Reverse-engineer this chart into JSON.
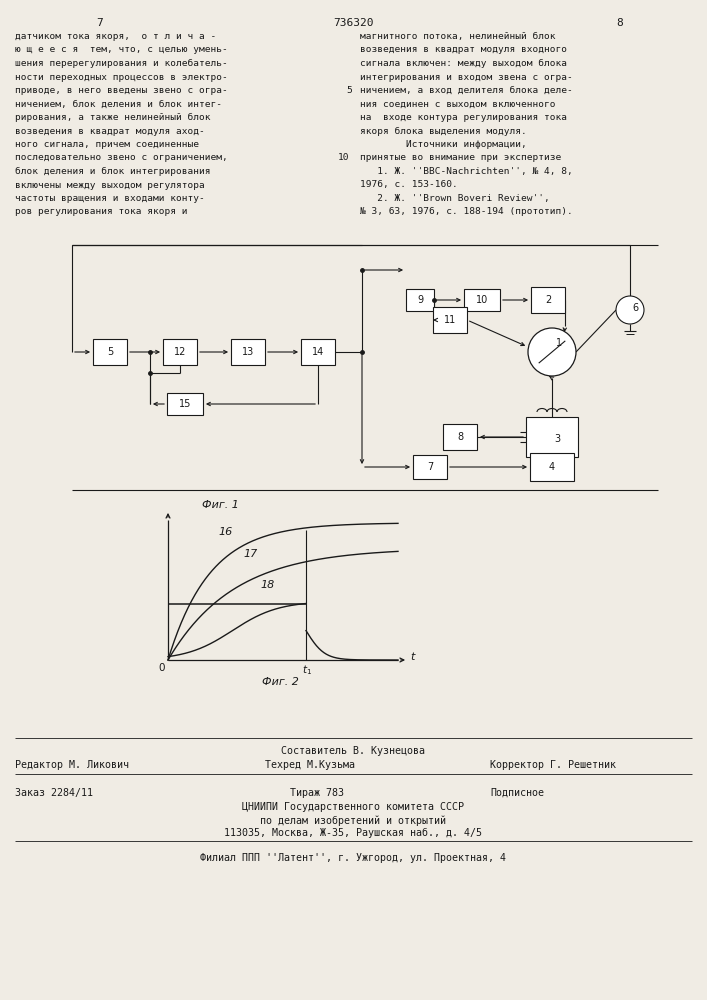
{
  "page_width": 7.07,
  "page_height": 10.0,
  "bg_color": "#f0ece4",
  "text_color": "#1a1a1a",
  "page_num_left": "7",
  "page_num_center": "736320",
  "page_num_right": "8",
  "left_text": [
    "датчиком тока якоря,  о т л и ч а -",
    "ю щ е е с я  тем, что, с целью умень-",
    "шения перерегулирования и колебатель-",
    "ности переходных процессов в электро-",
    "приводе, в него введены звено с огра-",
    "ничением, блок деления и блок интег-",
    "рирования, а также нелинейный блок",
    "возведения в квадрат модуля аход-",
    "ного сигнала, причем соединенные",
    "последовательно звено с ограничением,",
    "блок деления и блок интегрирования",
    "включены между выходом регулятора",
    "частоты вращения и входами конту-",
    "ров регулирования тока якоря и"
  ],
  "right_text": [
    "магнитного потока, нелинейный блок",
    "возведения в квадрат модуля входного",
    "сигнала включен: между выходом блока",
    "интегрирования и входом звена с огра-",
    "ничением, а вход делителя блока деле-",
    "ния соединен с выходом включенного",
    "на  входе контура регулирования тока",
    "якоря блока выделения модуля.",
    "        Источники информации,",
    "принятые во внимание при экспертизе",
    "   1. Ж. ''BBC-Nachrichten'', № 4, 8,",
    "1976, с. 153-160.",
    "   2. Ж. ''Brown Boveri Review'',",
    "№ 3, 63, 1976, с. 188-194 (прототип)."
  ],
  "line_num_5": "5",
  "line_num_10": "10",
  "fig1_caption": "Фиг. 1",
  "fig2_caption": "Фиг. 2",
  "footer_comp": "Составитель В. Кузнецова",
  "footer_editor": "Редактор М. Ликович",
  "footer_tech": "Техред М.Кузьма",
  "footer_corrector": "Корректор Г. Решетник",
  "footer_order": "Заказ 2284/11",
  "footer_print": "Тираж 783",
  "footer_sub": "Подписное",
  "footer_org1": "ЦНИИПИ Государственного комитета СССР",
  "footer_org2": "по делам изобретений и открытий",
  "footer_org3": "113035, Москва, Ж-35, Раушская наб., д. 4/5",
  "footer_branch": "Филиал ППП ''Латент'', г. Ужгород, ул. Проектная, 4"
}
